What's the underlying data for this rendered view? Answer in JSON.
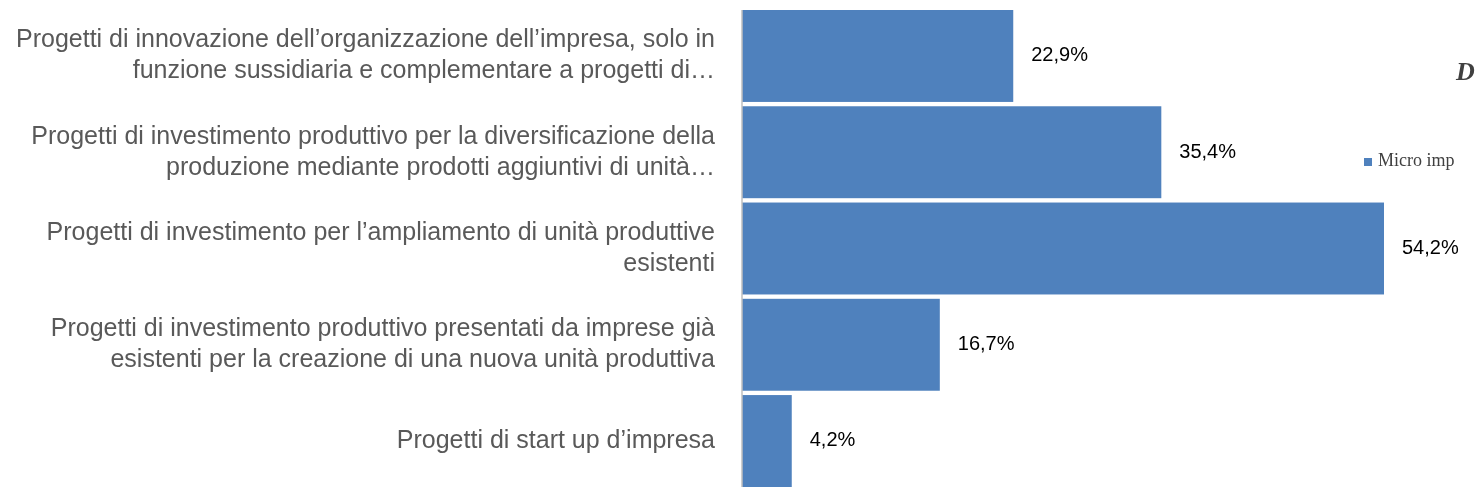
{
  "chart_data": {
    "type": "bar",
    "orientation": "horizontal",
    "title": "D",
    "categories": [
      "Progetti di innovazione dell’organizzazione dell’impresa, solo in funzione sussidiaria e complementare a progetti di…",
      "Progetti di investimento produttivo per la diversificazione della produzione mediante prodotti aggiuntivi di unità…",
      "Progetti di investimento per l’ampliamento di unità produttive esistenti",
      "Progetti di investimento produttivo presentati da imprese già esistenti per la creazione di una nuova unità produttiva",
      "Progetti di start up d’impresa"
    ],
    "series": [
      {
        "name": "Micro imp",
        "color": "#4f81bd",
        "values": [
          22.9,
          35.4,
          54.2,
          16.7,
          4.2
        ],
        "value_labels": [
          "22,9%",
          "35,4%",
          "54,2%",
          "16,7%",
          "4,2%"
        ]
      }
    ],
    "legend": "right"
  }
}
